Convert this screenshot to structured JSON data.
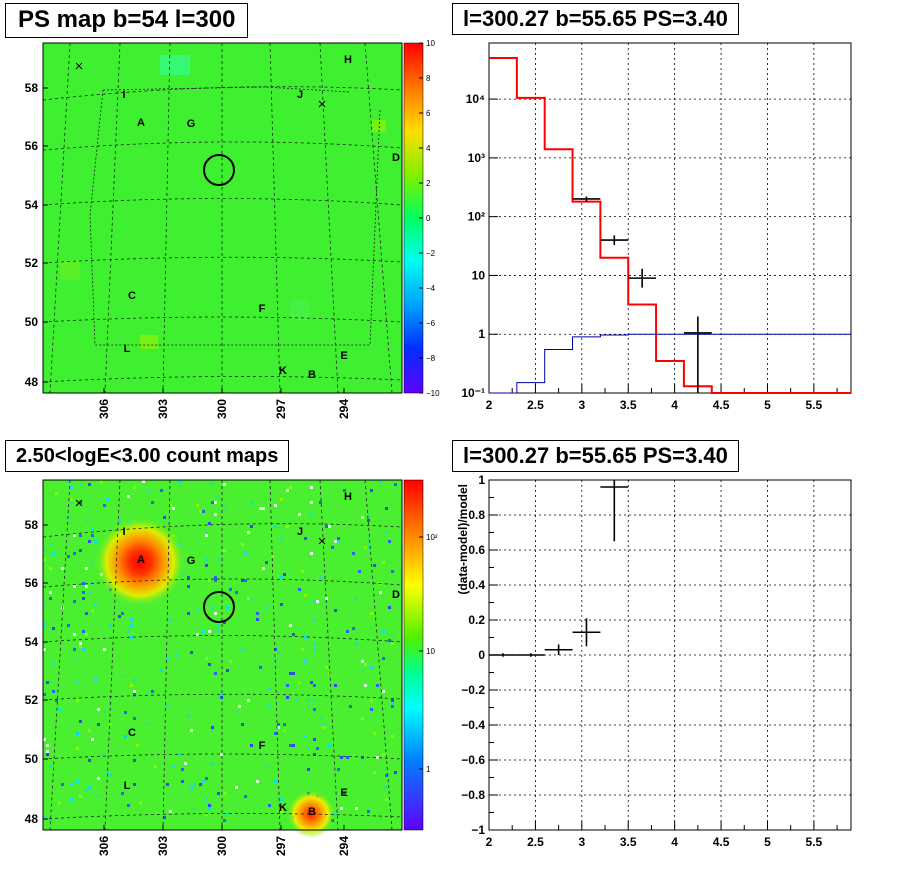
{
  "panels": {
    "ps_map": {
      "title": "PS map b=54 l=300",
      "lat_ticks": [
        "48",
        "50",
        "52",
        "54",
        "56",
        "58"
      ],
      "lon_ticks": [
        "306",
        "303",
        "300",
        "297",
        "294"
      ],
      "colorbar_ticks": [
        "10",
        "8",
        "6",
        "4",
        "2",
        "0",
        "−2",
        "−4",
        "−6",
        "−8",
        "−10"
      ],
      "source_labels": [
        "H",
        "I",
        "J",
        "A",
        "G",
        "D",
        "C",
        "F",
        "L",
        "E",
        "K",
        "B"
      ]
    },
    "count_map": {
      "title": "2.50<logE<3.00 count maps",
      "lat_ticks": [
        "48",
        "50",
        "52",
        "54",
        "56",
        "58"
      ],
      "lon_ticks": [
        "306",
        "303",
        "300",
        "297",
        "294"
      ],
      "colorbar_ticks": [
        "10²",
        "10",
        "1"
      ],
      "source_labels": [
        "H",
        "I",
        "J",
        "A",
        "G",
        "D",
        "C",
        "F",
        "L",
        "E",
        "K",
        "B"
      ]
    }
  },
  "chart_data": [
    {
      "type": "line",
      "title": "l=300.27 b=55.65 PS=3.40",
      "xlim": [
        2,
        5.9
      ],
      "ylim": [
        0.1,
        90000
      ],
      "log_y": true,
      "grid": true,
      "x_ticks": [
        "2",
        "2.5",
        "3",
        "3.5",
        "4",
        "4.5",
        "5",
        "5.5"
      ],
      "y_ticks": [
        "10⁻¹",
        "1",
        "10",
        "10²",
        "10³",
        "10⁴"
      ],
      "series": [
        {
          "style": "step",
          "color": "#ff0000",
          "edges": [
            2,
            2.3,
            2.6,
            2.9,
            3.2,
            3.5,
            3.8,
            4.1,
            4.4,
            5.9
          ],
          "values": [
            50000,
            10500,
            1400,
            180,
            20,
            3.2,
            0.35,
            0.13,
            0.1
          ]
        },
        {
          "style": "step",
          "color": "#0000aa",
          "edges": [
            2,
            2.3,
            2.6,
            2.9,
            3.2,
            3.5,
            5.9
          ],
          "values": [
            0.1,
            0.15,
            0.55,
            0.9,
            0.97,
            1.0
          ]
        },
        {
          "style": "errorbar",
          "color": "#000000",
          "x": [
            3.05,
            3.35,
            3.65,
            4.25
          ],
          "y": [
            200,
            40,
            9,
            1.05
          ],
          "xerr": [
            0.15,
            0.15,
            0.15,
            0.15
          ],
          "ylow": [
            180,
            33,
            6.2,
            0.1
          ],
          "yhigh": [
            220,
            48,
            13,
            2
          ]
        }
      ]
    },
    {
      "type": "scatter",
      "title": "l=300.27 b=55.65 PS=3.40",
      "ylabel": "(data-model)/model",
      "xlim": [
        2,
        5.9
      ],
      "ylim": [
        -1,
        1
      ],
      "grid": true,
      "x_ticks": [
        "2",
        "2.5",
        "3",
        "3.5",
        "4",
        "4.5",
        "5",
        "5.5"
      ],
      "y_ticks": [
        "−1",
        "−0.8",
        "−0.6",
        "−0.4",
        "−0.2",
        "0",
        "0.2",
        "0.4",
        "0.6",
        "0.8",
        "1"
      ],
      "series": [
        {
          "style": "errorbar",
          "color": "#000000",
          "x": [
            2.15,
            2.45,
            2.75,
            3.05,
            3.35
          ],
          "y": [
            0,
            0,
            0.03,
            0.13,
            0.96
          ],
          "xerr": [
            0.15,
            0.15,
            0.15,
            0.15,
            0.15
          ],
          "ylow": [
            -0.01,
            -0.01,
            0.0,
            0.05,
            0.65
          ],
          "yhigh": [
            0.01,
            0.01,
            0.06,
            0.21,
            1.0
          ]
        }
      ]
    }
  ]
}
